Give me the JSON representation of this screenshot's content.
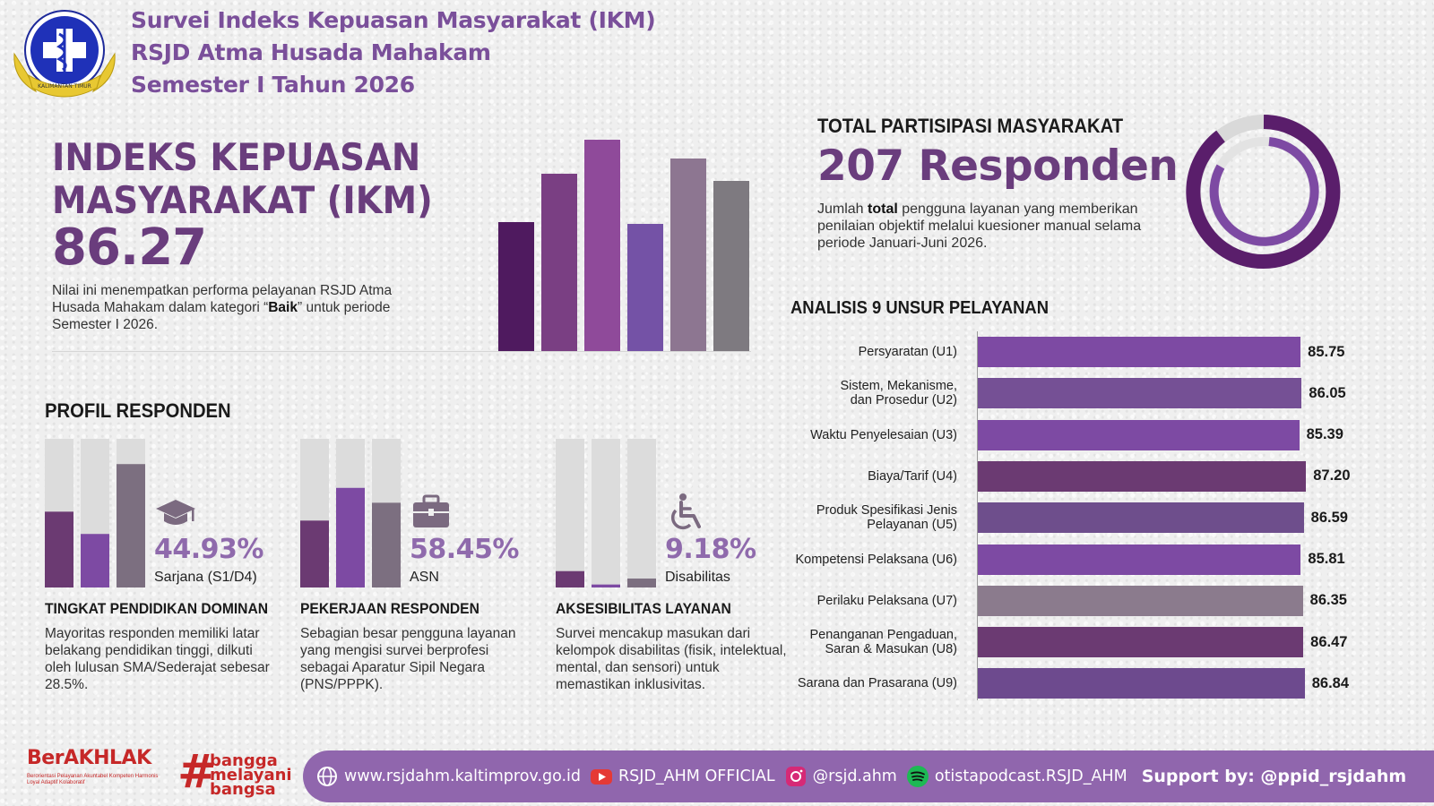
{
  "header": {
    "line1": "Survei Indeks Kepuasan Masyarakat (IKM)",
    "line2": "RSJD Atma Husada Mahakam",
    "line3": "Semester I Tahun 2026",
    "logo_text_top": "RSJD ATMA HUSADA MAHAKAM",
    "logo_text_ribbon": "KALIMANTAN TIMUR"
  },
  "ikm": {
    "title": "INDEKS KEPUASAN MASYARAKAT (IKM)",
    "value": "86.27",
    "desc_pre": "Nilai ini menempatkan performa pelayanan RSJD Atma Husada Mahakam dalam kategori “",
    "desc_bold": "Baik",
    "desc_post": "” untuk periode Semester I 2026."
  },
  "participation": {
    "label": "TOTAL PARTISIPASI MASYARAKAT",
    "count": "207 Responden",
    "desc_pre": "Jumlah ",
    "desc_bold": "total",
    "desc_post": " pengguna layanan yang memberikan penilaian objektif melalui kuesioner manual selama periode Januari-Juni 2026."
  },
  "analysis": {
    "label": "ANALISIS 9 UNSUR PELAYANAN"
  },
  "chart_data": {
    "type": "bar",
    "orientation": "horizontal",
    "title": "ANALISIS 9 UNSUR PELAYANAN",
    "categories": [
      "Persyaratan (U1)",
      "Sistem, Mekanisme, dan Prosedur (U2)",
      "Waktu Penyelesaian (U3)",
      "Biaya/Tarif (U4)",
      "Produk Spesifikasi Jenis Pelayanan (U5)",
      "Kompetensi Pelaksana (U6)",
      "Perilaku Pelaksana (U7)",
      "Penanganan Pengaduan, Saran & Masukan (U8)",
      "Sarana dan Prasarana (U9)"
    ],
    "labels_display": [
      "Persyaratan (U1)",
      "Sistem, Mekanisme,\ndan Prosedur (U2)",
      "Waktu Penyelesaian (U3)",
      "Biaya/Tarif (U4)",
      "Produk Spesifikasi Jenis\nPelayanan (U5)",
      "Kompetensi Pelaksana (U6)",
      "Perilaku Pelaksana (U7)",
      "Penanganan Pengaduan,\nSaran & Masukan (U8)",
      "Sarana dan Prasarana (U9)"
    ],
    "values": [
      85.75,
      86.05,
      85.39,
      87.2,
      86.59,
      85.81,
      86.35,
      86.47,
      86.84
    ],
    "value_labels": [
      "85.75",
      "86.05",
      "85.39",
      "87.20",
      "86.59",
      "85.81",
      "86.35",
      "86.47",
      "86.84"
    ],
    "bar_colors": [
      "#7d4aa3",
      "#755095",
      "#7d4aa3",
      "#6b3a72",
      "#6e4e8c",
      "#7d4aa3",
      "#8b7b8d",
      "#6b3a72",
      "#6d4a8e"
    ],
    "xlim": [
      0,
      100
    ],
    "grid": false
  },
  "profile": {
    "label": "PROFIL RESPONDEN",
    "education": {
      "percent": "44.93%",
      "sub": "Sarjana (S1/D4)",
      "heading": "TINGKAT PENDIDIKAN DOMINAN",
      "desc": "Mayoritas responden memiliki latar belakang pendidikan tinggi, dilkuti oleh lulusan SMA/Sederajat sebesar 28.5%.",
      "icon": "graduation-cap-icon",
      "bar_levels": [
        0.51,
        0.36,
        0.83
      ],
      "bar_colors": [
        "#6b3a72",
        "#7d4aa3",
        "#7c6f80"
      ]
    },
    "occupation": {
      "percent": "58.45%",
      "sub": "ASN",
      "heading": "PEKERJAAN RESPONDEN",
      "desc": "Sebagian besar pengguna layanan yang mengisi survei berprofesi sebagai Aparatur Sipil Negara (PNS/PPPK).",
      "icon": "briefcase-icon",
      "bar_levels": [
        0.45,
        0.67,
        0.57
      ],
      "bar_colors": [
        "#6b3a72",
        "#7d4aa3",
        "#7c6f80"
      ]
    },
    "accessibility": {
      "percent": "9.18%",
      "sub": "Disabilitas",
      "heading": "AKSESIBILITAS LAYANAN",
      "desc": "Survei mencakup masukan dari kelompok disabilitas (fisik, intelektual, mental, dan sensori) untuk memastikan inklusivitas.",
      "icon": "wheelchair-icon",
      "bar_levels": [
        0.11,
        0.02,
        0.06
      ],
      "bar_colors": [
        "#6b3a72",
        "#7d4aa3",
        "#7c6f80"
      ]
    }
  },
  "footer": {
    "berakhlak": "BerAKHLAK",
    "berakhlak_sub": "Berorientasi Pelayanan Akuntabel Kompeten Harmonis Loyal Adaptif Kolaboratif",
    "hash_text_1": "bangga",
    "hash_text_2": "melayani",
    "hash_text_3": "bangsa",
    "website": "www.rsjdahm.kaltimprov.go.id",
    "youtube": "RSJD_AHM OFFICIAL",
    "instagram": "@rsjd.ahm",
    "spotify": "otistapodcast.RSJD_AHM",
    "support": "Support by: @ppid_rsjdahm"
  },
  "colors": {
    "accent": "#6a3d7d",
    "accent_light": "#8f6aac",
    "footer_bar": "#9066ad",
    "brand_red": "#c62828"
  }
}
